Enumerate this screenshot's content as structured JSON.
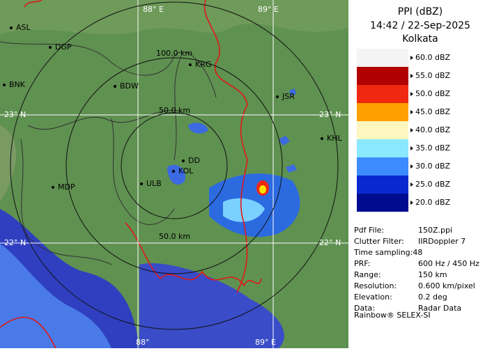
{
  "header": {
    "title": "PPI (dBZ)",
    "time": "14:42 / 22-Sep-2025",
    "station": "Kolkata"
  },
  "map": {
    "grid_labels": [
      "88° E",
      "89° E",
      "23° N",
      "23° N",
      "22° N",
      "22° N",
      "88°",
      "89° E"
    ],
    "range_labels": [
      "100.0 km",
      "50.0 km",
      "50.0 km"
    ],
    "places": [
      "ASL",
      "DGP",
      "BNK",
      "BDW",
      "KRG",
      "JSR",
      "KHL",
      "MDP",
      "ULB",
      "DD",
      "KOL"
    ]
  },
  "legend": {
    "levels": [
      {
        "label": "60.0 dBZ",
        "color": "#f4f4f4"
      },
      {
        "label": "55.0 dBZ",
        "color": "#b00000"
      },
      {
        "label": "50.0 dBZ",
        "color": "#f02810"
      },
      {
        "label": "45.0 dBZ",
        "color": "#ffa000"
      },
      {
        "label": "40.0 dBZ",
        "color": "#fff6c0"
      },
      {
        "label": "35.0 dBZ",
        "color": "#8ae8ff"
      },
      {
        "label": "30.0 dBZ",
        "color": "#3c8cff"
      },
      {
        "label": "25.0 dBZ",
        "color": "#0a28d0"
      },
      {
        "label": "20.0 dBZ",
        "color": "#000c90"
      }
    ]
  },
  "info": {
    "rows": [
      {
        "label": "Pdf File:",
        "value": "150Z.ppi"
      },
      {
        "label": "Clutter Filter:",
        "value": "IIRDoppler 7"
      },
      {
        "label": "Time sampling:48"
      },
      {
        "label": "PRF:",
        "value": "600 Hz / 450 Hz"
      },
      {
        "label": "Range:",
        "value": "150 km"
      },
      {
        "label": "Resolution:",
        "value": "0.600 km/pixel"
      },
      {
        "label": "Elevation:",
        "value": "0.2 deg"
      },
      {
        "label": "Data:",
        "value": "Radar Data"
      }
    ],
    "footer": "Rainbow® SELEX-SI"
  }
}
